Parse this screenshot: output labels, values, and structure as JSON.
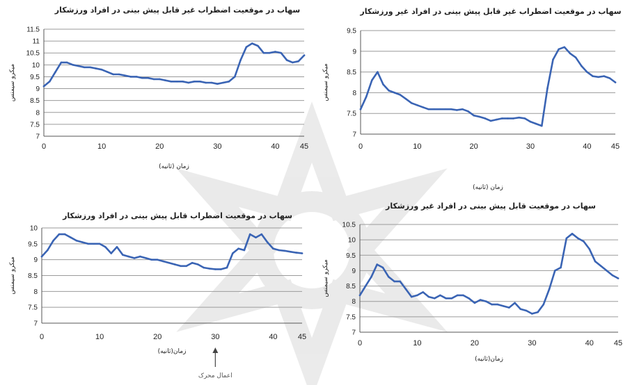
{
  "chart_data": [
    {
      "type": "line",
      "title": "سهاب در موقعیت اضطراب غیر قابل پیش بینی در افراد ورزشکار",
      "xlabel": "زمان (ثانیه)",
      "ylabel": "میکرو سیمنس",
      "xlim": [
        0,
        45
      ],
      "ylim": [
        7,
        11.5
      ],
      "xticks": [
        "0",
        "10",
        "20",
        "30",
        "40",
        "45"
      ],
      "yticks": [
        "7",
        "7.5",
        "8",
        "8.5",
        "9",
        "9.5",
        "10",
        "10.5",
        "11",
        "11.5"
      ],
      "grid": true,
      "line_color": "#3a64b4",
      "x": [
        0,
        1,
        2,
        3,
        4,
        5,
        6,
        7,
        8,
        9,
        10,
        11,
        12,
        13,
        14,
        15,
        16,
        17,
        18,
        19,
        20,
        21,
        22,
        23,
        24,
        25,
        26,
        27,
        28,
        29,
        30,
        31,
        32,
        33,
        34,
        35,
        36,
        37,
        38,
        39,
        40,
        41,
        42,
        43,
        44,
        45
      ],
      "y": [
        9.1,
        9.3,
        9.7,
        10.1,
        10.1,
        10.0,
        9.95,
        9.9,
        9.9,
        9.85,
        9.8,
        9.7,
        9.6,
        9.6,
        9.55,
        9.5,
        9.5,
        9.45,
        9.45,
        9.4,
        9.4,
        9.35,
        9.3,
        9.3,
        9.3,
        9.25,
        9.3,
        9.3,
        9.25,
        9.25,
        9.2,
        9.25,
        9.3,
        9.5,
        10.2,
        10.75,
        10.9,
        10.8,
        10.5,
        10.5,
        10.55,
        10.5,
        10.2,
        10.1,
        10.15,
        10.4
      ]
    },
    {
      "type": "line",
      "title": "سهاب در موقعیت اضطراب غیر قابل پیش بینی در افراد غیر ورزشکار",
      "xlabel": "زمان (ثانیه)",
      "ylabel": "میکرو سیمنس",
      "xlim": [
        0,
        45
      ],
      "ylim": [
        7,
        9.5
      ],
      "xticks": [
        "0",
        "10",
        "20",
        "30",
        "40",
        "45"
      ],
      "yticks": [
        "7",
        "7.5",
        "8",
        "8.5",
        "9",
        "9.5"
      ],
      "grid": true,
      "line_color": "#3a64b4",
      "x": [
        0,
        1,
        2,
        3,
        4,
        5,
        6,
        7,
        8,
        9,
        10,
        11,
        12,
        13,
        14,
        15,
        16,
        17,
        18,
        19,
        20,
        21,
        22,
        23,
        24,
        25,
        26,
        27,
        28,
        29,
        30,
        31,
        32,
        33,
        34,
        35,
        36,
        37,
        38,
        39,
        40,
        41,
        42,
        43,
        44,
        45
      ],
      "y": [
        7.6,
        7.9,
        8.3,
        8.5,
        8.2,
        8.05,
        8.0,
        7.95,
        7.85,
        7.75,
        7.7,
        7.65,
        7.6,
        7.6,
        7.6,
        7.6,
        7.6,
        7.58,
        7.6,
        7.55,
        7.45,
        7.42,
        7.38,
        7.32,
        7.35,
        7.38,
        7.38,
        7.38,
        7.4,
        7.38,
        7.3,
        7.25,
        7.2,
        8.1,
        8.8,
        9.05,
        9.1,
        8.95,
        8.85,
        8.65,
        8.5,
        8.4,
        8.38,
        8.4,
        8.35,
        8.25
      ]
    },
    {
      "type": "line",
      "title": "سهاب در موقعیت اضطراب قابل پیش بینی در افراد ورزشکار",
      "xlabel": "زمان(ثانیه)",
      "ylabel": "میکرو سیمنس",
      "xlim": [
        0,
        45
      ],
      "ylim": [
        7,
        10
      ],
      "xticks": [
        "0",
        "10",
        "20",
        "30",
        "40",
        "45"
      ],
      "yticks": [
        "7",
        "7.5",
        "8",
        "8.5",
        "9",
        "9.5",
        "10"
      ],
      "grid": true,
      "line_color": "#3a64b4",
      "annotation": {
        "text": "اعمال محرک",
        "x": 30
      },
      "x": [
        0,
        1,
        2,
        3,
        4,
        5,
        6,
        7,
        8,
        9,
        10,
        11,
        12,
        13,
        14,
        15,
        16,
        17,
        18,
        19,
        20,
        21,
        22,
        23,
        24,
        25,
        26,
        27,
        28,
        29,
        30,
        31,
        32,
        33,
        34,
        35,
        36,
        37,
        38,
        39,
        40,
        41,
        42,
        43,
        44,
        45
      ],
      "y": [
        9.1,
        9.3,
        9.6,
        9.8,
        9.8,
        9.7,
        9.6,
        9.55,
        9.5,
        9.5,
        9.5,
        9.4,
        9.2,
        9.4,
        9.15,
        9.1,
        9.05,
        9.1,
        9.05,
        9.0,
        9.0,
        8.95,
        8.9,
        8.85,
        8.8,
        8.8,
        8.9,
        8.85,
        8.75,
        8.72,
        8.7,
        8.7,
        8.75,
        9.2,
        9.35,
        9.3,
        9.8,
        9.7,
        9.8,
        9.55,
        9.35,
        9.3,
        9.28,
        9.25,
        9.22,
        9.2
      ]
    },
    {
      "type": "line",
      "title": "سهاب در موقعیت قابل پیش بینی در افراد غیر ورزشکار",
      "xlabel": "زمان(ثانیه)",
      "ylabel": "میکرو سیمنس",
      "xlim": [
        0,
        45
      ],
      "ylim": [
        7,
        10.5
      ],
      "xticks": [
        "0",
        "10",
        "20",
        "30",
        "40",
        "45"
      ],
      "yticks": [
        "7",
        "7.5",
        "8",
        "8.5",
        "9",
        "9.5",
        "10",
        "10.5"
      ],
      "grid": true,
      "line_color": "#3a64b4",
      "x": [
        0,
        1,
        2,
        3,
        4,
        5,
        6,
        7,
        8,
        9,
        10,
        11,
        12,
        13,
        14,
        15,
        16,
        17,
        18,
        19,
        20,
        21,
        22,
        23,
        24,
        25,
        26,
        27,
        28,
        29,
        30,
        31,
        32,
        33,
        34,
        35,
        36,
        37,
        38,
        39,
        40,
        41,
        42,
        43,
        44,
        45
      ],
      "y": [
        8.2,
        8.5,
        8.8,
        9.2,
        9.1,
        8.8,
        8.65,
        8.65,
        8.4,
        8.15,
        8.2,
        8.3,
        8.15,
        8.1,
        8.2,
        8.1,
        8.1,
        8.2,
        8.2,
        8.1,
        7.95,
        8.05,
        8.0,
        7.9,
        7.9,
        7.85,
        7.8,
        7.95,
        7.75,
        7.7,
        7.6,
        7.65,
        7.9,
        8.4,
        9.0,
        9.1,
        10.05,
        10.2,
        10.05,
        9.95,
        9.7,
        9.3,
        9.15,
        9.0,
        8.85,
        8.75
      ]
    }
  ]
}
